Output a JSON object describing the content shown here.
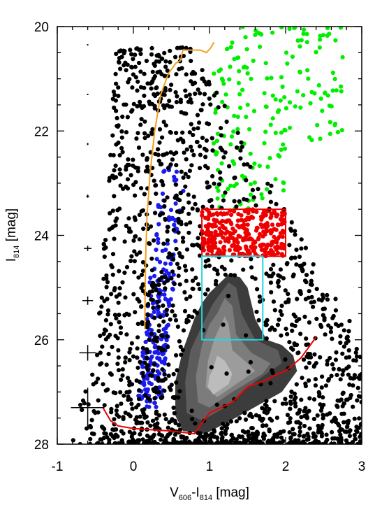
{
  "chart_data": {
    "type": "scatter",
    "title": "",
    "x_axis": {
      "label_main": "V",
      "label_sub1": "606",
      "label_sep": "-I",
      "label_sub2": "814",
      "label_unit": " [mag]",
      "range": [
        -1,
        3
      ],
      "ticks": [
        -1,
        0,
        1,
        2,
        3
      ],
      "tick_labels": [
        "-1",
        "0",
        "1",
        "2",
        "3"
      ]
    },
    "y_axis": {
      "label_main": "I",
      "label_sub": "814",
      "label_unit": " [mag]",
      "range": [
        20,
        28
      ],
      "inverted": true,
      "ticks": [
        20,
        22,
        24,
        26,
        28
      ],
      "tick_labels": [
        "20",
        "22",
        "24",
        "26",
        "28"
      ]
    },
    "colors": {
      "rgb_stars": "#000000",
      "blue_sample": "#1a1aee",
      "green_sample": "#00ee00",
      "red_sample": "#ee0000",
      "red_box": "#ee0000",
      "cyan_box": "#22d6e0",
      "completeness_line": "#ee0000",
      "isochrone": "#f0a020"
    },
    "red_box": {
      "x": [
        0.9,
        2.0
      ],
      "y": [
        23.5,
        24.4
      ]
    },
    "cyan_box": {
      "x": [
        0.9,
        1.7
      ],
      "y": [
        24.4,
        26.0
      ]
    },
    "completeness_limit": {
      "x": [
        -0.4,
        -0.3,
        -0.2,
        0.0,
        0.2,
        0.5,
        0.8,
        1.0,
        1.3,
        1.5,
        1.7,
        1.9,
        2.0,
        2.2,
        2.4
      ],
      "y": [
        27.3,
        27.55,
        27.65,
        27.7,
        27.72,
        27.75,
        27.8,
        27.4,
        27.2,
        26.9,
        26.8,
        26.65,
        26.6,
        26.35,
        25.95
      ]
    },
    "isochrone": {
      "x": [
        0.15,
        0.16,
        0.18,
        0.22,
        0.28,
        0.36,
        0.46,
        0.56,
        0.62,
        0.65,
        0.88,
        0.96,
        1.02,
        1.06
      ],
      "y": [
        25.8,
        24.5,
        23.6,
        22.8,
        22.0,
        21.3,
        20.9,
        20.7,
        20.65,
        20.45,
        20.45,
        20.5,
        20.4,
        20.3
      ]
    },
    "error_bars": [
      {
        "x": -0.6,
        "y": 20.35,
        "xerr": 0.005,
        "yerr": 0.01
      },
      {
        "x": -0.6,
        "y": 21.3,
        "xerr": 0.005,
        "yerr": 0.01
      },
      {
        "x": -0.6,
        "y": 22.25,
        "xerr": 0.01,
        "yerr": 0.02
      },
      {
        "x": -0.6,
        "y": 23.25,
        "xerr": 0.02,
        "yerr": 0.03
      },
      {
        "x": -0.6,
        "y": 24.25,
        "xerr": 0.05,
        "yerr": 0.05
      },
      {
        "x": -0.6,
        "y": 25.25,
        "xerr": 0.07,
        "yerr": 0.08
      },
      {
        "x": -0.6,
        "y": 26.25,
        "xerr": 0.11,
        "yerr": 0.15
      },
      {
        "x": -0.6,
        "y": 27.3,
        "xerr": 0.22,
        "yerr": 0.38
      }
    ],
    "density_contours": [
      {
        "fill": "#3c3c3c",
        "x": [
          1.0,
          1.25,
          1.4,
          1.5,
          1.6,
          1.75,
          1.95,
          2.1,
          2.15,
          1.95,
          1.4,
          0.95,
          0.65,
          0.55,
          0.55,
          0.65,
          0.8,
          0.9
        ],
        "y": [
          25.1,
          24.75,
          24.8,
          25.0,
          25.6,
          26.0,
          26.1,
          26.3,
          26.6,
          27.0,
          27.45,
          27.8,
          27.75,
          27.45,
          26.8,
          26.2,
          25.6,
          25.3
        ]
      },
      {
        "fill": "#5c5c5c",
        "x": [
          1.05,
          1.25,
          1.35,
          1.42,
          1.6,
          1.9,
          1.95,
          1.6,
          1.2,
          0.9,
          0.7,
          0.68,
          0.75,
          0.88,
          0.98
        ],
        "y": [
          25.3,
          24.9,
          25.0,
          25.5,
          26.0,
          26.2,
          26.45,
          26.8,
          27.3,
          27.55,
          27.4,
          26.8,
          26.2,
          25.8,
          25.5
        ]
      },
      {
        "fill": "#7c7c7c",
        "x": [
          1.1,
          1.2,
          1.3,
          1.35,
          1.55,
          1.8,
          1.7,
          1.3,
          1.0,
          0.85,
          0.82,
          0.9,
          1.0
        ],
        "y": [
          25.5,
          25.2,
          25.35,
          25.9,
          26.25,
          26.45,
          26.65,
          27.0,
          27.3,
          27.2,
          26.7,
          26.1,
          25.7
        ]
      },
      {
        "fill": "#9c9c9c",
        "x": [
          1.12,
          1.2,
          1.25,
          1.3,
          1.5,
          1.6,
          1.45,
          1.1,
          0.95,
          0.98,
          1.06
        ],
        "y": [
          25.8,
          25.55,
          25.7,
          26.2,
          26.45,
          26.6,
          26.75,
          27.1,
          26.9,
          26.4,
          26.0
        ]
      },
      {
        "fill": "#bcbcbc",
        "x": [
          1.05,
          1.1,
          1.2,
          1.3,
          1.25,
          1.05,
          0.98,
          1.0
        ],
        "y": [
          26.55,
          26.3,
          26.4,
          26.65,
          26.85,
          27.05,
          26.9,
          26.7
        ]
      }
    ],
    "series": [
      {
        "color": "blue",
        "count": 230,
        "ranges": [
          {
            "x": [
              0.1,
              0.65
            ],
            "y": [
              22.4,
              27.3
            ]
          }
        ]
      },
      {
        "color": "green",
        "count": 190,
        "ranges": [
          {
            "x": [
              1.05,
              2.75
            ],
            "y": [
              20.0,
              23.5
            ]
          }
        ]
      },
      {
        "color": "red",
        "count": 300,
        "ranges": [
          {
            "x": [
              0.9,
              2.0
            ],
            "y": [
              23.5,
              24.4
            ]
          }
        ]
      },
      {
        "color": "black",
        "count": 1600,
        "ranges": [
          {
            "x": [
              -1.0,
              3.0
            ],
            "y": [
              20.3,
              28.0
            ]
          }
        ]
      }
    ]
  }
}
